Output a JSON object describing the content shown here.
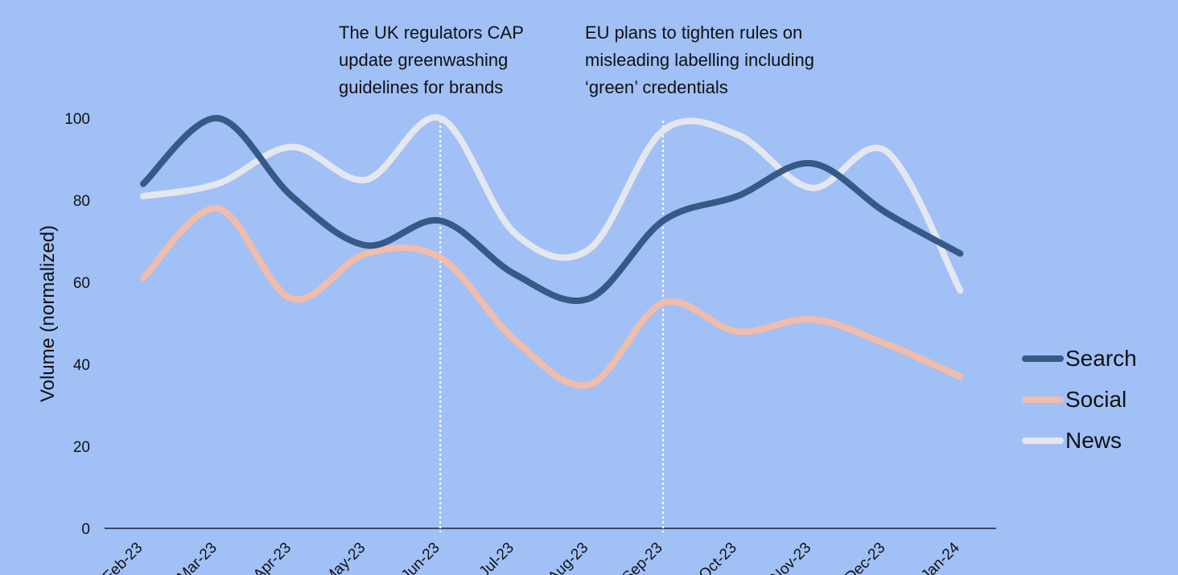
{
  "chart_data": {
    "type": "line",
    "title": "",
    "xlabel": "",
    "ylabel": "Volume (normalized)",
    "categories": [
      "Feb-23",
      "Mar-23",
      "Apr-23",
      "May-23",
      "Jun-23",
      "Jul-23",
      "Aug-23",
      "Sep-23",
      "Oct-23",
      "Nov-23",
      "Dec-23",
      "Jan-24"
    ],
    "ylim": [
      0,
      100
    ],
    "yticks": [
      "0",
      "20",
      "40",
      "60",
      "80",
      "100"
    ],
    "series": [
      {
        "name": "Search",
        "color": "#355a85",
        "values": [
          84,
          100,
          81,
          69,
          75,
          62,
          56,
          75,
          81,
          89,
          77,
          67
        ]
      },
      {
        "name": "Social",
        "color": "#f2bcaa",
        "values": [
          61,
          78,
          56,
          67,
          66,
          46,
          35,
          55,
          48,
          51,
          45,
          37
        ]
      },
      {
        "name": "News",
        "color": "#e5e7ee",
        "values": [
          81,
          84,
          93,
          85,
          100,
          72,
          68,
          97,
          96,
          83,
          92,
          58
        ]
      }
    ],
    "annotations": [
      {
        "text": "The UK regulators CAP\nupdate greenwashing\nguidelines for brands",
        "x": "Jun-23"
      },
      {
        "text": "EU plans to tighten rules on\nmisleading labelling including\n‘green’ credentials",
        "x": "Sep-23"
      }
    ],
    "legend_position": "right",
    "grid": false
  }
}
